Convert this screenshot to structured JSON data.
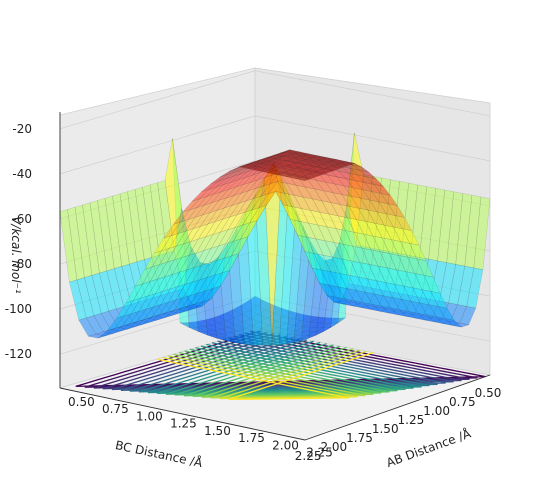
{
  "chart_data": {
    "type": "surface3d",
    "title": "",
    "xlabel": "AB Distance /Å",
    "ylabel": "BC Distance /Å",
    "zlabel": "V/kcal. mol⁻¹",
    "x_ticks": [
      "0.50",
      "0.75",
      "1.00",
      "1.25",
      "1.50",
      "1.75",
      "2.00",
      "2.25"
    ],
    "y_ticks": [
      "0.50",
      "0.75",
      "1.00",
      "1.25",
      "1.50",
      "1.75",
      "2.00",
      "2.25"
    ],
    "z_ticks": [
      "-20",
      "-40",
      "-60",
      "-80",
      "-100",
      "-120"
    ],
    "xlim": [
      0.5,
      2.3
    ],
    "ylim": [
      0.5,
      2.3
    ],
    "zlim": [
      -135,
      -15
    ],
    "surface_colormap": "jet",
    "contour_colormap": "viridis",
    "surface_alpha": 0.5,
    "grid": true,
    "legend": "none",
    "features": {
      "reactant_valley_min": -110,
      "product_valley_min": -110,
      "well_min": -128,
      "plateau": -60,
      "wall_cap": -20
    }
  }
}
